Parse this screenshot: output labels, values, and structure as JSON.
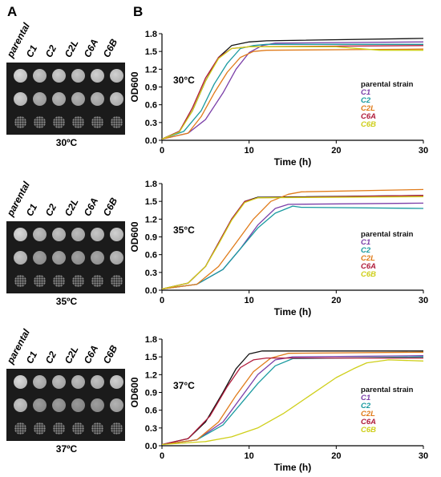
{
  "panels": {
    "a": "A",
    "b": "B"
  },
  "spot_assays": [
    {
      "strains": [
        "parental",
        "C1",
        "C2",
        "C2L",
        "C6A",
        "C6B"
      ],
      "temperature": "30ºC",
      "rows": [
        [
          0.86,
          0.78,
          0.8,
          0.78,
          0.82,
          0.82
        ],
        [
          0.82,
          0.7,
          0.72,
          0.7,
          0.72,
          0.78
        ],
        [
          0.6,
          0.55,
          0.55,
          0.58,
          0.56,
          0.6
        ]
      ]
    },
    {
      "strains": [
        "parental",
        "C1",
        "C2",
        "C2L",
        "C6A",
        "C6B"
      ],
      "temperature": "35ºC",
      "rows": [
        [
          0.86,
          0.75,
          0.76,
          0.74,
          0.78,
          0.82
        ],
        [
          0.78,
          0.64,
          0.66,
          0.64,
          0.66,
          0.74
        ],
        [
          0.58,
          0.5,
          0.5,
          0.52,
          0.54,
          0.58
        ]
      ]
    },
    {
      "strains": [
        "parental",
        "C1",
        "C2",
        "C2L",
        "C6A",
        "C6B"
      ],
      "temperature": "37ºC",
      "rows": [
        [
          0.86,
          0.74,
          0.74,
          0.74,
          0.76,
          0.82
        ],
        [
          0.78,
          0.62,
          0.62,
          0.6,
          0.62,
          0.7
        ],
        [
          0.56,
          0.48,
          0.46,
          0.48,
          0.48,
          0.54
        ]
      ]
    }
  ],
  "chart_data": [
    {
      "type": "line",
      "annotation": "30°C",
      "xlabel": "Time (h)",
      "ylabel": "OD600",
      "xlim": [
        0,
        30
      ],
      "ylim": [
        0,
        1.8
      ],
      "xticks": [
        "0",
        "10",
        "20",
        "30"
      ],
      "yticks": [
        "0.0",
        "0.3",
        "0.6",
        "0.9",
        "1.2",
        "1.5",
        "1.8"
      ],
      "legend": [
        "parental strain",
        "C1",
        "C2",
        "C2L",
        "C6A",
        "C6B"
      ],
      "series": [
        {
          "name": "parental strain",
          "color": "#111111",
          "values": [
            [
              0,
              0.02
            ],
            [
              2,
              0.15
            ],
            [
              3.5,
              0.5
            ],
            [
              5,
              1.0
            ],
            [
              6.5,
              1.4
            ],
            [
              8,
              1.6
            ],
            [
              10,
              1.66
            ],
            [
              12,
              1.68
            ],
            [
              30,
              1.72
            ]
          ]
        },
        {
          "name": "C1",
          "color": "#7b3fa8",
          "values": [
            [
              0,
              0.02
            ],
            [
              3,
              0.12
            ],
            [
              5,
              0.35
            ],
            [
              7,
              0.8
            ],
            [
              8.5,
              1.2
            ],
            [
              10,
              1.48
            ],
            [
              11.5,
              1.6
            ],
            [
              13,
              1.64
            ],
            [
              30,
              1.66
            ]
          ]
        },
        {
          "name": "C2",
          "color": "#1a9aa0",
          "values": [
            [
              0,
              0.02
            ],
            [
              2.5,
              0.15
            ],
            [
              4.5,
              0.5
            ],
            [
              6,
              0.95
            ],
            [
              7.5,
              1.3
            ],
            [
              9,
              1.55
            ],
            [
              10.5,
              1.6
            ],
            [
              12,
              1.62
            ],
            [
              30,
              1.62
            ]
          ]
        },
        {
          "name": "C2L",
          "color": "#e07b1a",
          "values": [
            [
              0,
              0.02
            ],
            [
              3,
              0.12
            ],
            [
              4.5,
              0.4
            ],
            [
              6,
              0.8
            ],
            [
              7.5,
              1.15
            ],
            [
              9,
              1.4
            ],
            [
              10.5,
              1.5
            ],
            [
              12,
              1.52
            ],
            [
              30,
              1.54
            ]
          ]
        },
        {
          "name": "C6A",
          "color": "#b01c3c",
          "values": [
            [
              0,
              0.02
            ],
            [
              2,
              0.15
            ],
            [
              3.5,
              0.55
            ],
            [
              5,
              1.05
            ],
            [
              6.5,
              1.4
            ],
            [
              8,
              1.55
            ],
            [
              10,
              1.58
            ],
            [
              30,
              1.6
            ]
          ]
        },
        {
          "name": "C6B",
          "color": "#cfcf1a",
          "values": [
            [
              0,
              0.02
            ],
            [
              2,
              0.14
            ],
            [
              3.5,
              0.5
            ],
            [
              5,
              1.0
            ],
            [
              6.5,
              1.38
            ],
            [
              8,
              1.55
            ],
            [
              10,
              1.58
            ],
            [
              20,
              1.58
            ],
            [
              25,
              1.52
            ],
            [
              30,
              1.52
            ]
          ]
        }
      ]
    },
    {
      "type": "line",
      "annotation": "35°C",
      "xlabel": "Time (h)",
      "ylabel": "OD600",
      "xlim": [
        0,
        30
      ],
      "ylim": [
        0,
        1.8
      ],
      "xticks": [
        "0",
        "10",
        "20",
        "30"
      ],
      "yticks": [
        "0.0",
        "0.3",
        "0.6",
        "0.9",
        "1.2",
        "1.5",
        "1.8"
      ],
      "legend": [
        "parental strain",
        "C1",
        "C2",
        "C2L",
        "C6A",
        "C6B"
      ],
      "series": [
        {
          "name": "parental strain",
          "color": "#111111",
          "values": [
            [
              0,
              0.02
            ],
            [
              3,
              0.12
            ],
            [
              5,
              0.4
            ],
            [
              6.5,
              0.8
            ],
            [
              8,
              1.2
            ],
            [
              9.5,
              1.5
            ],
            [
              11,
              1.57
            ],
            [
              30,
              1.6
            ]
          ]
        },
        {
          "name": "C1",
          "color": "#7b3fa8",
          "values": [
            [
              0,
              0.02
            ],
            [
              4,
              0.1
            ],
            [
              7,
              0.35
            ],
            [
              9,
              0.7
            ],
            [
              11,
              1.1
            ],
            [
              13,
              1.38
            ],
            [
              14.5,
              1.45
            ],
            [
              30,
              1.47
            ]
          ]
        },
        {
          "name": "C2",
          "color": "#1a9aa0",
          "values": [
            [
              0,
              0.02
            ],
            [
              4,
              0.1
            ],
            [
              7,
              0.35
            ],
            [
              9,
              0.7
            ],
            [
              11,
              1.05
            ],
            [
              13,
              1.3
            ],
            [
              15,
              1.42
            ],
            [
              16,
              1.4
            ],
            [
              30,
              1.38
            ]
          ]
        },
        {
          "name": "C2L",
          "color": "#e07b1a",
          "values": [
            [
              0,
              0.02
            ],
            [
              4,
              0.1
            ],
            [
              6.5,
              0.4
            ],
            [
              8.5,
              0.8
            ],
            [
              10.5,
              1.2
            ],
            [
              12.5,
              1.5
            ],
            [
              14.5,
              1.62
            ],
            [
              16,
              1.66
            ],
            [
              30,
              1.7
            ]
          ]
        },
        {
          "name": "C6A",
          "color": "#b01c3c",
          "values": [
            [
              0,
              0.02
            ],
            [
              3,
              0.12
            ],
            [
              5,
              0.4
            ],
            [
              6.5,
              0.8
            ],
            [
              8,
              1.2
            ],
            [
              9.5,
              1.5
            ],
            [
              11,
              1.56
            ],
            [
              30,
              1.6
            ]
          ]
        },
        {
          "name": "C6B",
          "color": "#cfcf1a",
          "values": [
            [
              0,
              0.02
            ],
            [
              3,
              0.12
            ],
            [
              5,
              0.4
            ],
            [
              6.5,
              0.78
            ],
            [
              8,
              1.18
            ],
            [
              9.5,
              1.48
            ],
            [
              11,
              1.56
            ],
            [
              30,
              1.58
            ]
          ]
        }
      ]
    },
    {
      "type": "line",
      "annotation": "37°C",
      "xlabel": "Time (h)",
      "ylabel": "OD600",
      "xlim": [
        0,
        30
      ],
      "ylim": [
        0,
        1.8
      ],
      "xticks": [
        "0",
        "10",
        "20",
        "30"
      ],
      "yticks": [
        "0.0",
        "0.3",
        "0.6",
        "0.9",
        "1.2",
        "1.5",
        "1.8"
      ],
      "legend": [
        "parental strain",
        "C1",
        "C2",
        "C2L",
        "C6A",
        "C6B"
      ],
      "series": [
        {
          "name": "parental strain",
          "color": "#111111",
          "values": [
            [
              0,
              0.02
            ],
            [
              3,
              0.12
            ],
            [
              5,
              0.4
            ],
            [
              7,
              0.9
            ],
            [
              8.5,
              1.3
            ],
            [
              10,
              1.55
            ],
            [
              11.5,
              1.6
            ],
            [
              30,
              1.6
            ]
          ]
        },
        {
          "name": "C1",
          "color": "#7b3fa8",
          "values": [
            [
              0,
              0.02
            ],
            [
              4,
              0.1
            ],
            [
              7,
              0.4
            ],
            [
              9,
              0.8
            ],
            [
              11,
              1.2
            ],
            [
              13,
              1.45
            ],
            [
              15,
              1.5
            ],
            [
              30,
              1.52
            ]
          ]
        },
        {
          "name": "C2",
          "color": "#1a9aa0",
          "values": [
            [
              0,
              0.02
            ],
            [
              4,
              0.1
            ],
            [
              7,
              0.35
            ],
            [
              9,
              0.7
            ],
            [
              11,
              1.05
            ],
            [
              13,
              1.35
            ],
            [
              15,
              1.47
            ],
            [
              30,
              1.5
            ]
          ]
        },
        {
          "name": "C2L",
          "color": "#e07b1a",
          "values": [
            [
              0,
              0.02
            ],
            [
              4,
              0.1
            ],
            [
              6.5,
              0.4
            ],
            [
              8.5,
              0.85
            ],
            [
              10.5,
              1.25
            ],
            [
              12.5,
              1.48
            ],
            [
              14.5,
              1.56
            ],
            [
              30,
              1.58
            ]
          ]
        },
        {
          "name": "C6A",
          "color": "#b01c3c",
          "values": [
            [
              0,
              0.02
            ],
            [
              3,
              0.12
            ],
            [
              5.5,
              0.5
            ],
            [
              7.5,
              1.0
            ],
            [
              9,
              1.32
            ],
            [
              10.5,
              1.45
            ],
            [
              12,
              1.48
            ],
            [
              30,
              1.48
            ]
          ]
        },
        {
          "name": "C6B",
          "color": "#cfcf1a",
          "values": [
            [
              0,
              0.02
            ],
            [
              5,
              0.07
            ],
            [
              8,
              0.15
            ],
            [
              11,
              0.3
            ],
            [
              14,
              0.55
            ],
            [
              17,
              0.85
            ],
            [
              20,
              1.15
            ],
            [
              22,
              1.3
            ],
            [
              23.5,
              1.4
            ],
            [
              26,
              1.45
            ],
            [
              30,
              1.43
            ]
          ]
        }
      ]
    }
  ]
}
